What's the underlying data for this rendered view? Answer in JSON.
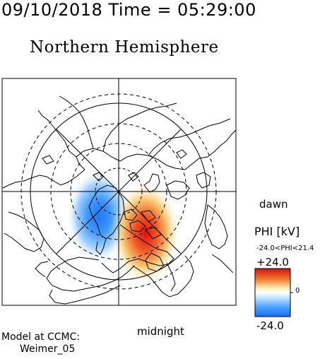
{
  "header": {
    "datetime": "09/10/2018 Time = 05:29:00",
    "hemisphere": "Northern Hemisphere"
  },
  "map": {
    "label_dawn": "dawn",
    "label_midnight": "midnight",
    "projection": "polar stereographic, north pole centered",
    "colors": {
      "negative": "#1e78ff",
      "positive": "#e01010",
      "neutral": "#ffffff"
    }
  },
  "colorbar": {
    "title": "PHI [kV]",
    "range_text": "-24.0<PHI<21.4",
    "max_label": "+24.0",
    "zero_label": "0",
    "min_label": "-24.0"
  },
  "footer": {
    "model_line": "Model at CCMC:",
    "model_name": "Weimer_05"
  }
}
